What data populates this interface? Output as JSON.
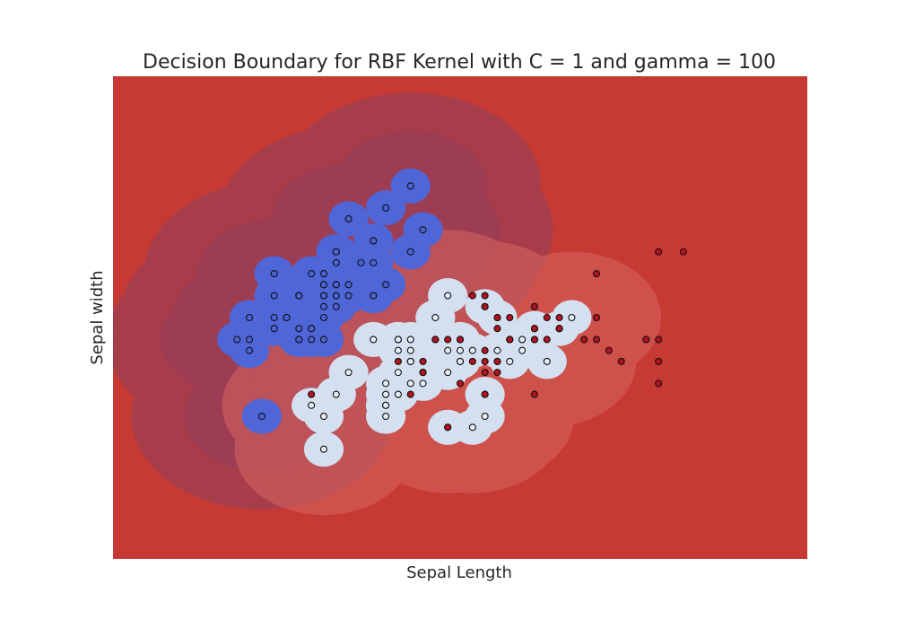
{
  "chart_data": {
    "type": "scatter",
    "title": "Decision Boundary for RBF Kernel with C = 1 and gamma = 100",
    "xlabel": "Sepal Length",
    "ylabel": "Sepal width",
    "xlim": [
      3.3,
      8.9
    ],
    "ylim": [
      1.0,
      5.4
    ],
    "grid": false,
    "ticks_visible": false,
    "classes": [
      {
        "label": 0,
        "color": "#4a63d6",
        "region_color": "#4f66d9"
      },
      {
        "label": 1,
        "color": "#e4ecf6",
        "region_color": "#d4dff0"
      },
      {
        "label": 2,
        "color": "#b3131f",
        "region_color": "#c73a33"
      }
    ],
    "series": [
      {
        "class": 0,
        "points": [
          [
            5.1,
            3.5
          ],
          [
            4.9,
            3.0
          ],
          [
            4.7,
            3.2
          ],
          [
            4.6,
            3.1
          ],
          [
            5.0,
            3.6
          ],
          [
            5.4,
            3.9
          ],
          [
            4.6,
            3.4
          ],
          [
            5.0,
            3.4
          ],
          [
            4.4,
            2.9
          ],
          [
            4.9,
            3.1
          ],
          [
            5.4,
            3.7
          ],
          [
            4.8,
            3.4
          ],
          [
            4.8,
            3.0
          ],
          [
            4.3,
            3.0
          ],
          [
            5.8,
            4.0
          ],
          [
            5.7,
            4.4
          ],
          [
            5.4,
            3.9
          ],
          [
            5.1,
            3.5
          ],
          [
            5.7,
            3.8
          ],
          [
            5.1,
            3.8
          ],
          [
            5.4,
            3.4
          ],
          [
            5.1,
            3.7
          ],
          [
            4.6,
            3.6
          ],
          [
            5.1,
            3.3
          ],
          [
            4.8,
            3.4
          ],
          [
            5.0,
            3.0
          ],
          [
            5.0,
            3.4
          ],
          [
            5.2,
            3.5
          ],
          [
            5.2,
            3.4
          ],
          [
            4.7,
            3.2
          ],
          [
            4.8,
            3.1
          ],
          [
            5.4,
            3.4
          ],
          [
            5.2,
            4.1
          ],
          [
            5.5,
            4.2
          ],
          [
            4.9,
            3.1
          ],
          [
            5.0,
            3.2
          ],
          [
            5.5,
            3.5
          ],
          [
            4.9,
            3.6
          ],
          [
            4.4,
            3.0
          ],
          [
            5.1,
            3.4
          ],
          [
            5.0,
            3.5
          ],
          [
            4.5,
            2.3
          ],
          [
            4.4,
            3.2
          ],
          [
            5.0,
            3.5
          ],
          [
            5.1,
            3.8
          ],
          [
            4.8,
            3.0
          ],
          [
            5.1,
            3.8
          ],
          [
            4.6,
            3.2
          ],
          [
            5.3,
            3.7
          ],
          [
            5.0,
            3.3
          ]
        ]
      },
      {
        "class": 1,
        "points": [
          [
            7.0,
            3.2
          ],
          [
            6.4,
            3.2
          ],
          [
            6.9,
            3.1
          ],
          [
            5.5,
            2.3
          ],
          [
            6.5,
            2.8
          ],
          [
            5.7,
            2.8
          ],
          [
            6.3,
            3.3
          ],
          [
            4.9,
            2.4
          ],
          [
            6.6,
            2.9
          ],
          [
            5.2,
            2.7
          ],
          [
            5.0,
            2.0
          ],
          [
            5.9,
            3.0
          ],
          [
            6.0,
            2.2
          ],
          [
            6.1,
            2.9
          ],
          [
            5.6,
            2.9
          ],
          [
            6.7,
            3.1
          ],
          [
            5.6,
            3.0
          ],
          [
            5.8,
            2.7
          ],
          [
            6.2,
            2.2
          ],
          [
            5.6,
            2.5
          ],
          [
            5.9,
            3.2
          ],
          [
            6.1,
            2.8
          ],
          [
            6.3,
            2.5
          ],
          [
            6.1,
            2.8
          ],
          [
            6.4,
            2.9
          ],
          [
            6.6,
            3.0
          ],
          [
            6.8,
            2.8
          ],
          [
            6.7,
            3.0
          ],
          [
            6.0,
            2.9
          ],
          [
            5.7,
            2.6
          ],
          [
            5.5,
            2.4
          ],
          [
            5.5,
            2.4
          ],
          [
            5.8,
            2.7
          ],
          [
            6.0,
            2.7
          ],
          [
            5.4,
            3.0
          ],
          [
            6.0,
            3.4
          ],
          [
            6.7,
            3.1
          ],
          [
            6.3,
            2.3
          ],
          [
            5.6,
            3.0
          ],
          [
            5.5,
            2.5
          ],
          [
            5.5,
            2.6
          ],
          [
            6.1,
            3.0
          ],
          [
            5.8,
            2.6
          ],
          [
            5.0,
            2.3
          ],
          [
            5.6,
            2.7
          ],
          [
            5.7,
            3.0
          ],
          [
            5.7,
            2.9
          ],
          [
            6.2,
            2.9
          ],
          [
            5.1,
            2.5
          ],
          [
            5.7,
            2.8
          ]
        ]
      },
      {
        "class": 2,
        "points": [
          [
            6.3,
            3.3
          ],
          [
            5.8,
            2.7
          ],
          [
            7.1,
            3.0
          ],
          [
            6.3,
            2.9
          ],
          [
            6.5,
            3.0
          ],
          [
            7.6,
            3.0
          ],
          [
            4.9,
            2.5
          ],
          [
            7.3,
            2.9
          ],
          [
            6.7,
            2.5
          ],
          [
            7.2,
            3.6
          ],
          [
            6.5,
            3.2
          ],
          [
            6.4,
            2.7
          ],
          [
            6.8,
            3.0
          ],
          [
            5.7,
            2.5
          ],
          [
            5.8,
            2.8
          ],
          [
            6.4,
            3.2
          ],
          [
            6.5,
            3.0
          ],
          [
            7.7,
            3.8
          ],
          [
            7.7,
            2.6
          ],
          [
            6.0,
            2.2
          ],
          [
            6.9,
            3.2
          ],
          [
            5.6,
            2.8
          ],
          [
            7.7,
            2.8
          ],
          [
            6.3,
            2.7
          ],
          [
            6.7,
            3.3
          ],
          [
            7.2,
            3.2
          ],
          [
            6.2,
            2.8
          ],
          [
            6.1,
            3.0
          ],
          [
            6.4,
            2.8
          ],
          [
            7.2,
            3.0
          ],
          [
            7.4,
            2.8
          ],
          [
            7.9,
            3.8
          ],
          [
            6.4,
            2.8
          ],
          [
            6.3,
            2.8
          ],
          [
            6.1,
            2.6
          ],
          [
            7.7,
            3.0
          ],
          [
            6.3,
            3.4
          ],
          [
            6.4,
            3.1
          ],
          [
            6.0,
            3.0
          ],
          [
            6.9,
            3.1
          ],
          [
            6.7,
            3.1
          ],
          [
            6.9,
            3.1
          ],
          [
            5.8,
            2.7
          ],
          [
            6.8,
            3.2
          ],
          [
            6.7,
            3.3
          ],
          [
            6.7,
            3.0
          ],
          [
            6.3,
            2.5
          ],
          [
            6.5,
            3.0
          ],
          [
            6.2,
            3.4
          ],
          [
            5.9,
            3.0
          ]
        ]
      }
    ]
  }
}
